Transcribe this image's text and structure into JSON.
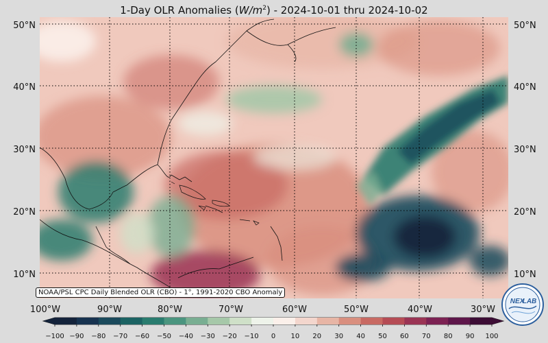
{
  "title": "1-Day OLR Anomalies (W/m²) - 2024-10-01 thru 2024-10-02",
  "title_parts": {
    "prefix": "1-Day OLR Anomalies (",
    "var": "W/m",
    "sup": "2",
    "suffix": ") - 2024-10-01 thru 2024-10-02"
  },
  "source_note": "NOAA/PSL CPC Daily Blended OLR (CBO) - 1°, 1991-2020 CBO Anomaly",
  "lat_labels": [
    "10°N",
    "20°N",
    "30°N",
    "40°N",
    "50°N"
  ],
  "lon_labels": [
    "100°W",
    "90°W",
    "80°W",
    "70°W",
    "60°W",
    "50°W",
    "40°W",
    "30°W"
  ],
  "colorbar": {
    "ticks": [
      "−100",
      "−90",
      "−80",
      "−70",
      "−60",
      "−50",
      "−40",
      "−30",
      "−20",
      "−10",
      "0",
      "10",
      "20",
      "30",
      "40",
      "50",
      "60",
      "70",
      "80",
      "90",
      "100"
    ],
    "colors": [
      "#14233b",
      "#17324f",
      "#1b4a5c",
      "#1c6363",
      "#2a7c6f",
      "#4b957f",
      "#79ae92",
      "#a6c8a9",
      "#cfe0c8",
      "#eef3ea",
      "#fbf0ea",
      "#f3d6cd",
      "#e7b5a5",
      "#d98f7f",
      "#c86a63",
      "#b54c55",
      "#9a3454",
      "#7c2253",
      "#5e164a",
      "#3c0d35"
    ]
  },
  "logo": {
    "text_top": "NEX",
    "text_bottom": "LAB"
  },
  "colors": {
    "background": "#dcdcdc",
    "ocean_base": "#f0c9bd",
    "coast": "#111111"
  }
}
